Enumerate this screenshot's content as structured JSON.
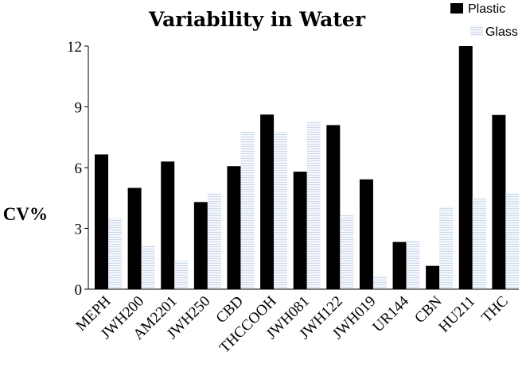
{
  "chart_data": {
    "type": "bar",
    "title": "Variability in Water",
    "xlabel": "",
    "ylabel": "CV%",
    "ylim": [
      0,
      12
    ],
    "yticks": [
      "0",
      "3",
      "6",
      "9",
      "12"
    ],
    "grid": false,
    "legend_position": "top-right",
    "categories": [
      "MEPH",
      "JWH200",
      "AM2201",
      "JWH250",
      "CBD",
      "THCCOOH",
      "JWH081",
      "JWH122",
      "JWH019",
      "UR144",
      "CBN",
      "HU211",
      "THC"
    ],
    "series": [
      {
        "name": "Plastic",
        "color": "#000000",
        "values": [
          6.65,
          5.0,
          6.3,
          4.3,
          6.07,
          8.62,
          5.8,
          8.1,
          5.42,
          2.33,
          1.15,
          12.0,
          8.6
        ]
      },
      {
        "name": "Glass",
        "color": "#e8eef7",
        "values": [
          3.5,
          2.15,
          1.4,
          4.75,
          7.8,
          7.75,
          8.3,
          3.65,
          0.65,
          2.4,
          4.08,
          4.5,
          4.75
        ]
      }
    ]
  }
}
